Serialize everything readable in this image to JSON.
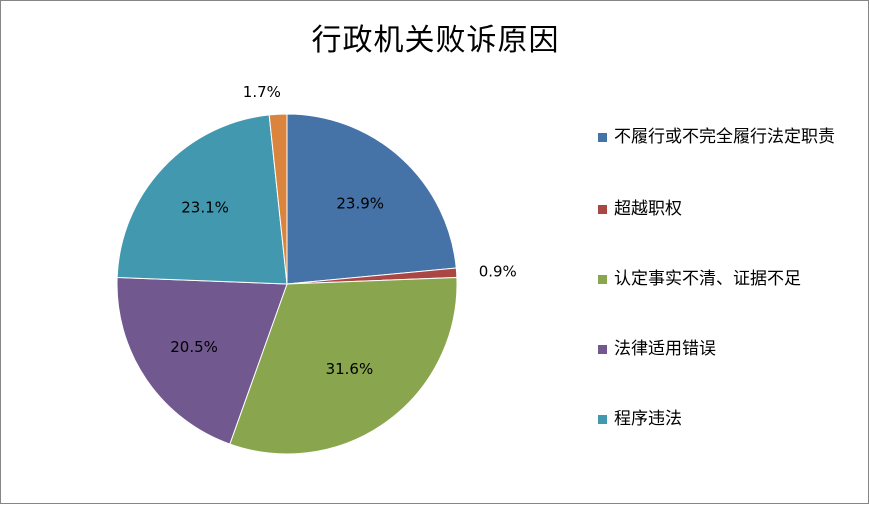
{
  "chart_data": {
    "type": "pie",
    "title": "行政机关败诉原因",
    "legend_position": "right",
    "slices": [
      {
        "name": "不履行或不完全履行法定职责",
        "value": 23.9,
        "label": "23.9%",
        "color": "#4572A7"
      },
      {
        "name": "超越职权",
        "value": 0.9,
        "label": "0.9%",
        "color": "#AA4643"
      },
      {
        "name": "认定事实不清、证据不足",
        "value": 31.6,
        "label": "31.6%",
        "color": "#89A54E"
      },
      {
        "name": "法律适用错误",
        "value": 20.5,
        "label": "20.5%",
        "color": "#71588F"
      },
      {
        "name": "程序违法",
        "value": 23.1,
        "label": "23.1%",
        "color": "#4198AF"
      },
      {
        "value": 1.7,
        "label": "1.7%",
        "color": "#DB843D"
      }
    ]
  }
}
